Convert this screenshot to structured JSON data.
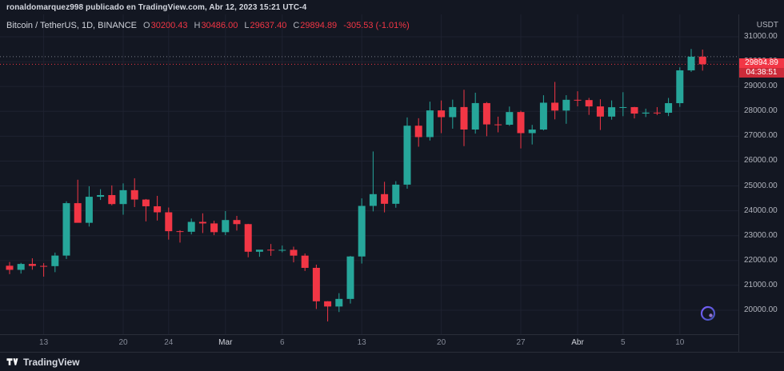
{
  "attribution": "ronaldomarquez998 publicado en TradingView.com, Abr 12, 2023 15:21 UTC-4",
  "legend": {
    "symbol": "Bitcoin / TetherUS, 1D, BINANCE",
    "o_label": "O",
    "o": "30200.43",
    "h_label": "H",
    "h": "30486.00",
    "l_label": "L",
    "l": "29637.40",
    "c_label": "C",
    "c": "29894.89",
    "change": "-305.53 (-1.01%)"
  },
  "price_axis": {
    "currency": "USDT",
    "last_price": "29894.89",
    "countdown": "04:38:51"
  },
  "footer": {
    "logo_text": "TradingView"
  },
  "colors": {
    "up": "#26a69a",
    "down": "#f23645",
    "bg": "#131722",
    "grid": "#1e2230",
    "axis_text": "#b2b5be",
    "open_line": "#787b86",
    "badge": "#f23645"
  },
  "chart_data": {
    "type": "candlestick",
    "title": "Bitcoin / TetherUS, 1D, BINANCE",
    "ylabel": "USDT",
    "ylim": [
      19500,
      31500
    ],
    "last_price": 29894.89,
    "open_line": 30200.43,
    "price_ticks": [
      31000,
      30000,
      29000,
      28000,
      27000,
      26000,
      25000,
      24000,
      23000,
      22000,
      21000,
      20000
    ],
    "time_ticks": [
      {
        "index": 3,
        "label": "13",
        "major": false
      },
      {
        "index": 10,
        "label": "20",
        "major": false
      },
      {
        "index": 14,
        "label": "24",
        "major": false
      },
      {
        "index": 19,
        "label": "Mar",
        "major": true
      },
      {
        "index": 24,
        "label": "6",
        "major": false
      },
      {
        "index": 31,
        "label": "13",
        "major": false
      },
      {
        "index": 38,
        "label": "20",
        "major": false
      },
      {
        "index": 45,
        "label": "27",
        "major": false
      },
      {
        "index": 50,
        "label": "Abr",
        "major": true
      },
      {
        "index": 54,
        "label": "5",
        "major": false
      },
      {
        "index": 59,
        "label": "10",
        "major": false
      }
    ],
    "candles": [
      [
        "2023-02-10",
        21790,
        21940,
        21450,
        21625
      ],
      [
        "2023-02-11",
        21625,
        21906,
        21474,
        21862
      ],
      [
        "2023-02-12",
        21862,
        22090,
        21630,
        21783
      ],
      [
        "2023-02-13",
        21783,
        21894,
        21351,
        21774
      ],
      [
        "2023-02-14",
        21774,
        22319,
        21532,
        22199
      ],
      [
        "2023-02-15",
        22199,
        24384,
        22063,
        24307
      ],
      [
        "2023-02-16",
        24307,
        25250,
        23522,
        23517
      ],
      [
        "2023-02-17",
        23517,
        24987,
        23367,
        24565
      ],
      [
        "2023-02-18",
        24565,
        24868,
        24436,
        24632
      ],
      [
        "2023-02-19",
        24632,
        25021,
        24221,
        24271
      ],
      [
        "2023-02-20",
        24271,
        25100,
        23842,
        24829
      ],
      [
        "2023-02-21",
        24829,
        25309,
        24150,
        24452
      ],
      [
        "2023-02-22",
        24452,
        24475,
        23574,
        24182
      ],
      [
        "2023-02-23",
        24182,
        24601,
        23608,
        23940
      ],
      [
        "2023-02-24",
        23940,
        24132,
        22841,
        23180
      ],
      [
        "2023-02-25",
        23180,
        23219,
        22722,
        23157
      ],
      [
        "2023-02-26",
        23157,
        23689,
        23051,
        23554
      ],
      [
        "2023-02-27",
        23554,
        23898,
        23106,
        23492
      ],
      [
        "2023-02-28",
        23492,
        23600,
        23020,
        23141
      ],
      [
        "2023-03-01",
        23141,
        23990,
        23020,
        23628
      ],
      [
        "2023-03-02",
        23628,
        23796,
        23206,
        23465
      ],
      [
        "2023-03-03",
        23465,
        23476,
        22131,
        22354
      ],
      [
        "2023-03-04",
        22354,
        22410,
        22151,
        22435
      ],
      [
        "2023-03-05",
        22435,
        22665,
        22189,
        22410
      ],
      [
        "2023-03-06",
        22410,
        22602,
        22330,
        22429
      ],
      [
        "2023-03-07",
        22429,
        22557,
        21927,
        22197
      ],
      [
        "2023-03-08",
        22197,
        22282,
        21580,
        21705
      ],
      [
        "2023-03-09",
        21705,
        21834,
        20050,
        20360
      ],
      [
        "2023-03-10",
        20360,
        20367,
        19549,
        20150
      ],
      [
        "2023-03-11",
        20150,
        20686,
        19928,
        20455
      ],
      [
        "2023-03-12",
        20455,
        22185,
        20270,
        22163
      ],
      [
        "2023-03-13",
        22163,
        24500,
        21878,
        24197
      ],
      [
        "2023-03-14",
        24197,
        26387,
        23976,
        24670
      ],
      [
        "2023-03-15",
        24670,
        25167,
        23937,
        24282
      ],
      [
        "2023-03-16",
        24282,
        25192,
        24123,
        25052
      ],
      [
        "2023-03-17",
        25052,
        27756,
        24890,
        27423
      ],
      [
        "2023-03-18",
        27423,
        27724,
        26578,
        26965
      ],
      [
        "2023-03-19",
        26965,
        28390,
        26827,
        28038
      ],
      [
        "2023-03-20",
        28038,
        28438,
        27124,
        27767
      ],
      [
        "2023-03-21",
        27767,
        28472,
        27303,
        28173
      ],
      [
        "2023-03-22",
        28173,
        28868,
        26601,
        27269
      ],
      [
        "2023-03-23",
        27269,
        28750,
        27105,
        28333
      ],
      [
        "2023-03-24",
        28333,
        28374,
        27000,
        27475
      ],
      [
        "2023-03-25",
        27475,
        27787,
        27156,
        27462
      ],
      [
        "2023-03-26",
        27462,
        28194,
        27417,
        27972
      ],
      [
        "2023-03-27",
        27972,
        28023,
        26508,
        27124
      ],
      [
        "2023-03-28",
        27124,
        27456,
        26668,
        27268
      ],
      [
        "2023-03-29",
        27268,
        28649,
        27233,
        28348
      ],
      [
        "2023-03-30",
        28348,
        29184,
        27678,
        28032
      ],
      [
        "2023-03-31",
        28032,
        28650,
        27500,
        28465
      ],
      [
        "2023-04-01",
        28465,
        28810,
        28200,
        28454
      ],
      [
        "2023-04-02",
        28454,
        28540,
        27858,
        28199
      ],
      [
        "2023-04-03",
        28199,
        28485,
        27250,
        27790
      ],
      [
        "2023-04-04",
        27790,
        28440,
        27666,
        28166
      ],
      [
        "2023-04-05",
        28166,
        28771,
        27806,
        28171
      ],
      [
        "2023-04-06",
        28171,
        28180,
        27714,
        27911
      ],
      [
        "2023-04-07",
        27911,
        28108,
        27772,
        27950
      ],
      [
        "2023-04-08",
        27950,
        28171,
        27852,
        27945
      ],
      [
        "2023-04-09",
        27945,
        28540,
        27810,
        28330
      ],
      [
        "2023-04-10",
        28330,
        29771,
        28180,
        29650
      ],
      [
        "2023-04-11",
        29650,
        30509,
        29589,
        30200.43
      ],
      [
        "2023-04-12",
        30200.43,
        30486.0,
        29637.4,
        29894.89
      ]
    ]
  }
}
